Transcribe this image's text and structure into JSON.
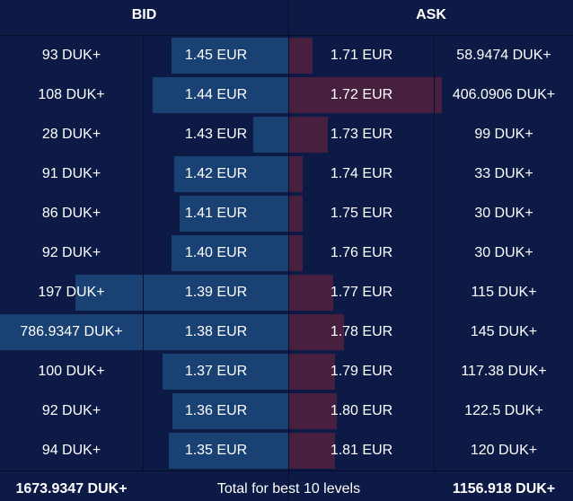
{
  "header": {
    "bid_label": "BID",
    "ask_label": "ASK"
  },
  "colors": {
    "background": "#0c1a45",
    "bid_bar": "#1a4173",
    "ask_bar": "#47203f",
    "divider": "#060e2b"
  },
  "rows": [
    {
      "bid_amount": "93 DUK+",
      "bid_price": "1.45 EUR",
      "ask_price": "1.71 EUR",
      "ask_amount": "58.9474 DUK+"
    },
    {
      "bid_amount": "108 DUK+",
      "bid_price": "1.44 EUR",
      "ask_price": "1.72 EUR",
      "ask_amount": "406.0906 DUK+"
    },
    {
      "bid_amount": "28 DUK+",
      "bid_price": "1.43 EUR",
      "ask_price": "1.73 EUR",
      "ask_amount": "99 DUK+"
    },
    {
      "bid_amount": "91 DUK+",
      "bid_price": "1.42 EUR",
      "ask_price": "1.74 EUR",
      "ask_amount": "33 DUK+"
    },
    {
      "bid_amount": "86 DUK+",
      "bid_price": "1.41 EUR",
      "ask_price": "1.75 EUR",
      "ask_amount": "30 DUK+"
    },
    {
      "bid_amount": "92 DUK+",
      "bid_price": "1.40 EUR",
      "ask_price": "1.76 EUR",
      "ask_amount": "30 DUK+"
    },
    {
      "bid_amount": "197 DUK+",
      "bid_price": "1.39 EUR",
      "ask_price": "1.77 EUR",
      "ask_amount": "115 DUK+"
    },
    {
      "bid_amount": "786.9347 DUK+",
      "bid_price": "1.38 EUR",
      "ask_price": "1.78 EUR",
      "ask_amount": "145 DUK+"
    },
    {
      "bid_amount": "100 DUK+",
      "bid_price": "1.37 EUR",
      "ask_price": "1.79 EUR",
      "ask_amount": "117.38 DUK+"
    },
    {
      "bid_amount": "92 DUK+",
      "bid_price": "1.36 EUR",
      "ask_price": "1.80 EUR",
      "ask_amount": "122.5 DUK+"
    },
    {
      "bid_amount": "94 DUK+",
      "bid_price": "1.35 EUR",
      "ask_price": "1.81 EUR",
      "ask_amount": "120 DUK+"
    }
  ],
  "bars": {
    "bid_fraction": [
      0.404,
      0.471,
      0.122,
      0.397,
      0.376,
      0.404,
      0.739,
      1.0,
      0.436,
      0.401,
      0.414
    ],
    "ask_fraction": [
      0.15,
      1.0,
      0.25,
      0.09,
      0.09,
      0.09,
      0.29,
      0.36,
      0.3,
      0.31,
      0.3
    ]
  },
  "footer": {
    "bid_total": "1673.9347 DUK+",
    "label": "Total for best 10 levels",
    "ask_total": "1156.918 DUK+"
  }
}
